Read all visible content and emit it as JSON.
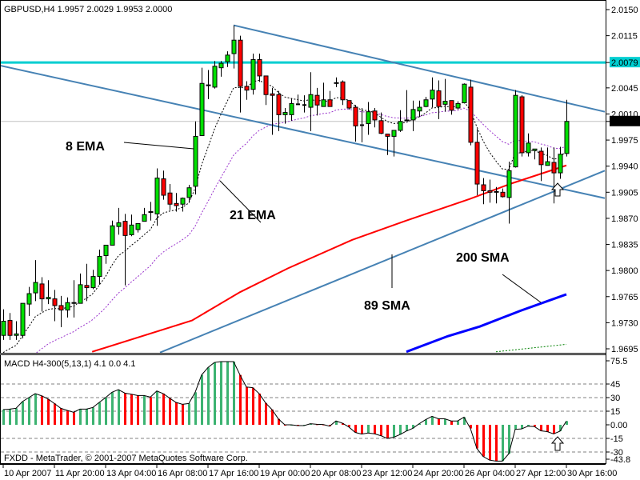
{
  "window": {
    "title_line": "GBPUSD,H4  1.9957 2.0029 1.9953 2.0000",
    "indicator_line": "MACD H4-300(5,13,1) 4.1 0.0 4.1",
    "copyright": "FXDD - MetaTrader, © 2001-2007 MetaQuotes Software Corp."
  },
  "colors": {
    "bull": "#00e000",
    "bear": "#ff0000",
    "ema8": "#000000",
    "ema21": "#9932cc",
    "sma89": "#ff0000",
    "sma200": "#0000ff",
    "sma_other": "#008000",
    "trendline": "#4682b4",
    "level_line": "#00ced1",
    "bid_line": "#c0c0c0",
    "macd_up": "#3cb371",
    "macd_down": "#ff0000"
  },
  "annotations": {
    "ema8": "8 EMA",
    "ema21": "21 EMA",
    "sma89": "89 SMA",
    "sma200": "200 SMA"
  },
  "chart_data": [
    {
      "type": "candlestick",
      "symbol": "GBPUSD",
      "timeframe": "H4",
      "ylim": [
        1.9695,
        2.015
      ],
      "price_ticks": [
        "2.0150",
        "2.0115",
        "2.0079",
        "2.0045",
        "2.0010",
        "2.0000",
        "1.9975",
        "1.9940",
        "1.9905",
        "1.9870",
        "1.9835",
        "1.9800",
        "1.9765",
        "1.9730",
        "1.9695"
      ],
      "highlighted_ticks": {
        "2.0079": "level",
        "2.0000": "bid"
      },
      "time_labels": [
        "10 Apr 2007",
        "11 Apr 20:00",
        "13 Apr 04:00",
        "16 Apr 08:00",
        "17 Apr 16:00",
        "19 Apr 00:00",
        "20 Apr 08:00",
        "23 Apr 12:00",
        "24 Apr 20:00",
        "26 Apr 04:00",
        "27 Apr 12:00",
        "30 Apr 16:00"
      ],
      "ohlc": [
        [
          1.9713,
          1.9748,
          1.9707,
          1.9732
        ],
        [
          1.9733,
          1.9743,
          1.9707,
          1.9713
        ],
        [
          1.9713,
          1.9732,
          1.9707,
          1.9715
        ],
        [
          1.9713,
          1.9756,
          1.9709,
          1.9756
        ],
        [
          1.9755,
          1.9778,
          1.9739,
          1.9769
        ],
        [
          1.977,
          1.9814,
          1.9759,
          1.9784
        ],
        [
          1.9782,
          1.9791,
          1.9745,
          1.9762
        ],
        [
          1.9762,
          1.9787,
          1.9755,
          1.9764
        ],
        [
          1.9762,
          1.9774,
          1.9732,
          1.9753
        ],
        [
          1.9753,
          1.9766,
          1.9724,
          1.9747
        ],
        [
          1.9747,
          1.9764,
          1.9737,
          1.9757
        ],
        [
          1.9756,
          1.9787,
          1.9737,
          1.9757
        ],
        [
          1.9756,
          1.9796,
          1.9756,
          1.9781
        ],
        [
          1.978,
          1.9809,
          1.9759,
          1.9777
        ],
        [
          1.9777,
          1.9801,
          1.9775,
          1.9792
        ],
        [
          1.9792,
          1.9828,
          1.9781,
          1.9819
        ],
        [
          1.982,
          1.9834,
          1.9809,
          1.9834
        ],
        [
          1.9834,
          1.9867,
          1.9834,
          1.986
        ],
        [
          1.9859,
          1.9884,
          1.9848,
          1.9864
        ],
        [
          1.9866,
          1.9876,
          1.978,
          1.9847
        ],
        [
          1.9848,
          1.9875,
          1.9846,
          1.9861
        ],
        [
          1.9855,
          1.9863,
          1.9851,
          1.9863
        ],
        [
          1.9866,
          1.9884,
          1.9866,
          1.9875
        ],
        [
          1.9878,
          1.9892,
          1.9867,
          1.9879
        ],
        [
          1.9876,
          1.9937,
          1.986,
          1.9924
        ],
        [
          1.9923,
          1.9934,
          1.9895,
          1.9901
        ],
        [
          1.9904,
          1.9916,
          1.9881,
          1.9889
        ],
        [
          1.989,
          1.9904,
          1.9879,
          1.9887
        ],
        [
          1.9889,
          1.9898,
          1.9879,
          1.9897
        ],
        [
          1.9898,
          1.9915,
          1.9891,
          1.9911
        ],
        [
          1.9913,
          2.0,
          1.9902,
          1.998
        ],
        [
          1.9981,
          2.0072,
          1.9981,
          2.0051
        ],
        [
          2.0049,
          2.0069,
          2.003,
          2.0048
        ],
        [
          2.0046,
          2.0081,
          2.0044,
          2.0074
        ],
        [
          2.0072,
          2.0081,
          2.006,
          2.0078
        ],
        [
          2.008,
          2.0094,
          2.0073,
          2.0089
        ],
        [
          2.0091,
          2.0129,
          2.0071,
          2.0109
        ],
        [
          2.0109,
          2.0115,
          2.0012,
          2.0047
        ],
        [
          2.0047,
          2.0054,
          2.0029,
          2.0042
        ],
        [
          2.0043,
          2.0091,
          2.0036,
          2.0083
        ],
        [
          2.0083,
          2.0091,
          2.0053,
          2.0061
        ],
        [
          2.0061,
          2.0061,
          2.0022,
          2.0036
        ],
        [
          2.0037,
          2.0045,
          1.9982,
          2.0035
        ],
        [
          2.0036,
          2.0041,
          1.9987,
          2.0009
        ],
        [
          2.0009,
          2.0018,
          1.9997,
          2.0012
        ],
        [
          2.0009,
          2.0031,
          2.0001,
          2.0024
        ],
        [
          2.0023,
          2.0036,
          2.0022,
          2.0023
        ],
        [
          2.0022,
          2.0035,
          2.0012,
          2.0022
        ],
        [
          2.0019,
          2.0066,
          1.9987,
          2.0036
        ],
        [
          2.0035,
          2.0045,
          2.0008,
          2.0022
        ],
        [
          2.002,
          2.0052,
          2.002,
          2.0029
        ],
        [
          2.0029,
          2.0041,
          2.002,
          2.002
        ],
        [
          2.0051,
          2.0059,
          2.0046,
          2.0052
        ],
        [
          2.0053,
          2.0055,
          2.0022,
          2.0029
        ],
        [
          2.0028,
          2.0028,
          2.0016,
          2.0018
        ],
        [
          2.0019,
          2.0022,
          1.9973,
          1.9994
        ],
        [
          1.9995,
          2.0018,
          1.9972,
          1.9995
        ],
        [
          1.9997,
          2.0026,
          1.9982,
          2.0013
        ],
        [
          2.0014,
          2.0018,
          1.9992,
          2.0002
        ],
        [
          2.0001,
          2.0012,
          1.9983,
          1.9984
        ],
        [
          1.9983,
          1.9983,
          1.9955,
          1.998
        ],
        [
          1.998,
          1.9988,
          1.9953,
          1.9988
        ],
        [
          1.9988,
          2.0015,
          1.9986,
          2.0
        ],
        [
          2.0001,
          2.0042,
          2.0001,
          2.0002
        ],
        [
          2.0002,
          2.0028,
          1.9987,
          2.0016
        ],
        [
          2.0014,
          2.0028,
          2.0006,
          2.0019
        ],
        [
          2.002,
          2.0033,
          2.0019,
          2.0029
        ],
        [
          2.003,
          2.0059,
          2.0019,
          2.0042
        ],
        [
          2.0041,
          2.0055,
          2.0003,
          2.002
        ],
        [
          2.0023,
          2.0057,
          2.0013,
          2.0027
        ],
        [
          2.0028,
          2.0028,
          2.0009,
          2.0015
        ],
        [
          2.0018,
          2.0027,
          2.0016,
          2.0024
        ],
        [
          2.0025,
          2.0051,
          2.0024,
          2.005
        ],
        [
          2.0046,
          2.0056,
          1.9968,
          1.9972
        ],
        [
          1.9972,
          1.999,
          1.9901,
          1.9916
        ],
        [
          1.9915,
          1.9924,
          1.9889,
          1.9907
        ],
        [
          1.9907,
          1.9922,
          1.9891,
          1.9905
        ],
        [
          1.9905,
          1.9912,
          1.989,
          1.9906
        ],
        [
          1.9905,
          1.991,
          1.9898,
          1.9899
        ],
        [
          1.9898,
          1.9946,
          1.9863,
          1.9934
        ],
        [
          1.9939,
          2.0042,
          1.9938,
          2.0035
        ],
        [
          2.0033,
          2.0035,
          1.9953,
          1.9958
        ],
        [
          1.9958,
          1.9984,
          1.9953,
          1.9971
        ],
        [
          1.9961,
          1.9963,
          1.9949,
          1.9963
        ],
        [
          1.996,
          1.9965,
          1.992,
          1.9942
        ],
        [
          1.9941,
          1.9965,
          1.9941,
          1.9946
        ],
        [
          1.9945,
          1.9965,
          1.989,
          1.9931
        ],
        [
          1.9931,
          1.9966,
          1.9923,
          1.9956
        ],
        [
          1.9957,
          2.0029,
          1.9953,
          2.0
        ]
      ],
      "moving_averages": {
        "ema_periods": [
          8,
          21
        ],
        "sma89": [
          [
            13.9,
            1.9691
          ],
          [
            29.5,
            1.9733
          ],
          [
            37,
            1.9771
          ],
          [
            44.5,
            1.9803
          ],
          [
            54.5,
            1.9841
          ],
          [
            63,
            1.9867
          ],
          [
            72.9,
            1.9896
          ],
          [
            79.5,
            1.9917
          ],
          [
            88,
            1.9941
          ]
        ],
        "sma200": [
          [
            63,
            1.9691
          ],
          [
            69.5,
            1.9712
          ],
          [
            74.5,
            1.9725
          ],
          [
            80.8,
            1.9746
          ],
          [
            88,
            1.9768
          ]
        ],
        "sma_other": [
          [
            77,
            1.9691
          ],
          [
            88,
            1.9701
          ]
        ]
      },
      "horizontal_levels": {
        "level": 2.0079,
        "bid": 2.0
      },
      "trendlines": [
        [
          [
            36,
            2.0129
          ],
          [
            94,
            2.0013
          ]
        ],
        [
          [
            -0.5,
            2.0075
          ],
          [
            94,
            1.9897
          ]
        ],
        [
          [
            24.5,
            1.969
          ],
          [
            94,
            1.9934
          ]
        ]
      ]
    },
    {
      "type": "bar",
      "title": "MACD H4-300(5,13,1)",
      "ylim": [
        -43.8,
        75.5
      ],
      "tick_labels": [
        "75.5",
        "45",
        "30",
        "15",
        "0.00",
        "-15",
        "-30",
        "-43.8"
      ],
      "gridlines": [
        45,
        30,
        15,
        -15,
        -30
      ],
      "values": [
        16.8,
        17.3,
        18.2,
        25.6,
        30,
        34.4,
        32,
        28.5,
        23.5,
        18.2,
        15.9,
        13.8,
        17.3,
        17.3,
        19.1,
        24.7,
        30,
        35.9,
        38.8,
        35,
        33.8,
        32.3,
        32.3,
        30.6,
        37.3,
        34.4,
        29.4,
        24.7,
        22.6,
        23.5,
        35.9,
        55,
        63.2,
        68.8,
        69.7,
        69.7,
        69.7,
        55,
        41.7,
        40.9,
        34.4,
        24.1,
        16.8,
        6.5,
        0,
        0,
        -0.9,
        -0.9,
        1.2,
        0.6,
        0.3,
        -1.5,
        4.2,
        1.8,
        -2.4,
        -8.4,
        -10.2,
        -9,
        -9.9,
        -12,
        -15,
        -13.8,
        -10.8,
        -6.9,
        -3.9,
        1.2,
        5.7,
        9.3,
        6.6,
        6.6,
        4.2,
        4.2,
        8.4,
        -4,
        -26,
        -35,
        -39,
        -40,
        -40,
        -32,
        -5,
        -4.5,
        -1.5,
        -2,
        -6.6,
        -7.5,
        -10,
        -7,
        4.1
      ]
    }
  ]
}
